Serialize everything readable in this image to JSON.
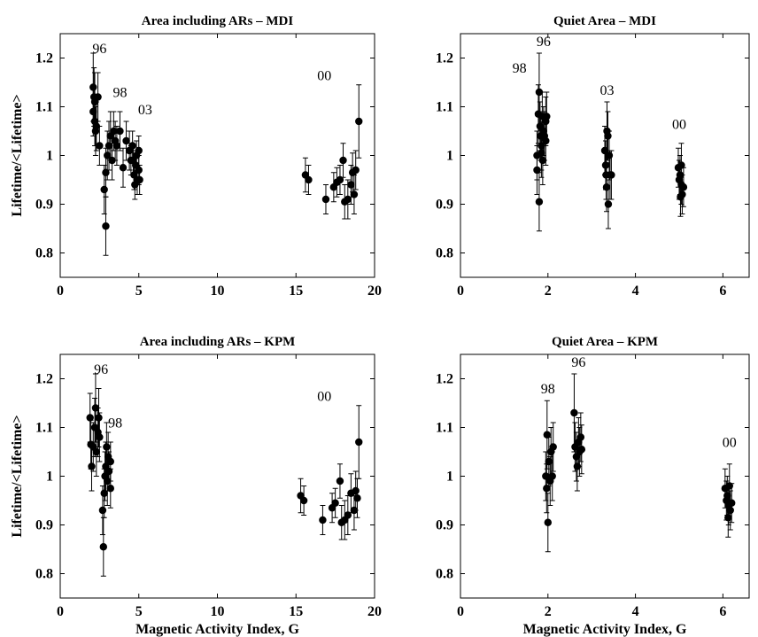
{
  "chart_data": [
    {
      "type": "scatter",
      "title": "Area including ARs – MDI",
      "xlabel": "",
      "ylabel": "Lifetime/<Lifetime>",
      "xlim": [
        0,
        20
      ],
      "ylim": [
        0.75,
        1.25
      ],
      "xticks": [
        0,
        5,
        10,
        15,
        20
      ],
      "yticks": [
        0.8,
        0.9,
        1,
        1.1,
        1.2
      ],
      "annotations": [
        {
          "text": "96",
          "x": 2.5,
          "y": 1.21
        },
        {
          "text": "98",
          "x": 3.8,
          "y": 1.12
        },
        {
          "text": "03",
          "x": 5.4,
          "y": 1.085
        },
        {
          "text": "00",
          "x": 16.8,
          "y": 1.155
        }
      ],
      "points": [
        {
          "x": 2.1,
          "y": 1.14,
          "err": 0.07
        },
        {
          "x": 2.15,
          "y": 1.12,
          "err": 0.06
        },
        {
          "x": 2.2,
          "y": 1.11,
          "err": 0.06
        },
        {
          "x": 2.1,
          "y": 1.09,
          "err": 0.05
        },
        {
          "x": 2.2,
          "y": 1.07,
          "err": 0.05
        },
        {
          "x": 2.3,
          "y": 1.06,
          "err": 0.05
        },
        {
          "x": 2.25,
          "y": 1.05,
          "err": 0.05
        },
        {
          "x": 2.4,
          "y": 1.12,
          "err": 0.05
        },
        {
          "x": 2.5,
          "y": 1.02,
          "err": 0.04
        },
        {
          "x": 2.8,
          "y": 0.93,
          "err": 0.05
        },
        {
          "x": 2.9,
          "y": 0.855,
          "err": 0.06
        },
        {
          "x": 2.9,
          "y": 0.965,
          "err": 0.05
        },
        {
          "x": 3.0,
          "y": 1.0,
          "err": 0.05
        },
        {
          "x": 3.1,
          "y": 1.02,
          "err": 0.05
        },
        {
          "x": 3.2,
          "y": 1.04,
          "err": 0.05
        },
        {
          "x": 3.3,
          "y": 0.99,
          "err": 0.04
        },
        {
          "x": 3.4,
          "y": 1.05,
          "err": 0.04
        },
        {
          "x": 3.5,
          "y": 1.03,
          "err": 0.04
        },
        {
          "x": 3.6,
          "y": 1.02,
          "err": 0.04
        },
        {
          "x": 3.8,
          "y": 1.05,
          "err": 0.04
        },
        {
          "x": 4.0,
          "y": 0.975,
          "err": 0.04
        },
        {
          "x": 4.2,
          "y": 1.03,
          "err": 0.04
        },
        {
          "x": 4.4,
          "y": 1.01,
          "err": 0.04
        },
        {
          "x": 4.5,
          "y": 0.99,
          "err": 0.03
        },
        {
          "x": 4.6,
          "y": 1.02,
          "err": 0.03
        },
        {
          "x": 4.7,
          "y": 0.96,
          "err": 0.03
        },
        {
          "x": 4.75,
          "y": 0.94,
          "err": 0.03
        },
        {
          "x": 4.8,
          "y": 0.98,
          "err": 0.03
        },
        {
          "x": 4.85,
          "y": 1.0,
          "err": 0.03
        },
        {
          "x": 4.9,
          "y": 0.95,
          "err": 0.03
        },
        {
          "x": 5.0,
          "y": 0.97,
          "err": 0.03
        },
        {
          "x": 5.0,
          "y": 1.01,
          "err": 0.03
        },
        {
          "x": 5.05,
          "y": 0.95,
          "err": 0.03
        },
        {
          "x": 4.65,
          "y": 0.99,
          "err": 0.03
        },
        {
          "x": 15.6,
          "y": 0.96,
          "err": 0.035
        },
        {
          "x": 15.8,
          "y": 0.95,
          "err": 0.03
        },
        {
          "x": 16.9,
          "y": 0.91,
          "err": 0.03
        },
        {
          "x": 17.4,
          "y": 0.935,
          "err": 0.03
        },
        {
          "x": 17.6,
          "y": 0.945,
          "err": 0.03
        },
        {
          "x": 17.8,
          "y": 0.95,
          "err": 0.03
        },
        {
          "x": 18.0,
          "y": 0.99,
          "err": 0.035
        },
        {
          "x": 18.1,
          "y": 0.905,
          "err": 0.035
        },
        {
          "x": 18.3,
          "y": 0.91,
          "err": 0.04
        },
        {
          "x": 18.5,
          "y": 0.94,
          "err": 0.04
        },
        {
          "x": 18.6,
          "y": 0.965,
          "err": 0.04
        },
        {
          "x": 18.7,
          "y": 0.92,
          "err": 0.04
        },
        {
          "x": 18.8,
          "y": 0.97,
          "err": 0.04
        },
        {
          "x": 19.0,
          "y": 1.07,
          "err": 0.075
        }
      ]
    },
    {
      "type": "scatter",
      "title": "Quiet Area – MDI",
      "xlabel": "",
      "ylabel": "",
      "xlim": [
        0,
        6.6
      ],
      "ylim": [
        0.75,
        1.25
      ],
      "xticks": [
        0,
        2,
        4,
        6
      ],
      "yticks": [
        0.8,
        0.9,
        1,
        1.1,
        1.2
      ],
      "annotations": [
        {
          "text": "96",
          "x": 1.9,
          "y": 1.225
        },
        {
          "text": "98",
          "x": 1.35,
          "y": 1.17
        },
        {
          "text": "03",
          "x": 3.35,
          "y": 1.125
        },
        {
          "text": "00",
          "x": 5.0,
          "y": 1.055
        }
      ],
      "points": [
        {
          "x": 1.75,
          "y": 1.0,
          "err": 0.05
        },
        {
          "x": 1.75,
          "y": 0.97,
          "err": 0.05
        },
        {
          "x": 1.78,
          "y": 1.085,
          "err": 0.06
        },
        {
          "x": 1.8,
          "y": 1.13,
          "err": 0.08
        },
        {
          "x": 1.8,
          "y": 0.905,
          "err": 0.06
        },
        {
          "x": 1.82,
          "y": 1.06,
          "err": 0.05
        },
        {
          "x": 1.83,
          "y": 1.04,
          "err": 0.05
        },
        {
          "x": 1.85,
          "y": 1.02,
          "err": 0.05
        },
        {
          "x": 1.87,
          "y": 1.08,
          "err": 0.05
        },
        {
          "x": 1.88,
          "y": 0.99,
          "err": 0.05
        },
        {
          "x": 1.9,
          "y": 1.05,
          "err": 0.05
        },
        {
          "x": 1.92,
          "y": 1.04,
          "err": 0.05
        },
        {
          "x": 1.95,
          "y": 1.07,
          "err": 0.05
        },
        {
          "x": 1.95,
          "y": 1.03,
          "err": 0.05
        },
        {
          "x": 1.97,
          "y": 1.08,
          "err": 0.05
        },
        {
          "x": 1.85,
          "y": 1.005,
          "err": 0.05
        },
        {
          "x": 3.3,
          "y": 1.01,
          "err": 0.05
        },
        {
          "x": 3.32,
          "y": 0.98,
          "err": 0.05
        },
        {
          "x": 3.33,
          "y": 0.96,
          "err": 0.05
        },
        {
          "x": 3.34,
          "y": 0.935,
          "err": 0.05
        },
        {
          "x": 3.35,
          "y": 1.05,
          "err": 0.06
        },
        {
          "x": 3.37,
          "y": 1.04,
          "err": 0.05
        },
        {
          "x": 3.38,
          "y": 0.9,
          "err": 0.05
        },
        {
          "x": 3.4,
          "y": 1.0,
          "err": 0.05
        },
        {
          "x": 3.42,
          "y": 0.96,
          "err": 0.05
        },
        {
          "x": 3.45,
          "y": 0.96,
          "err": 0.05
        },
        {
          "x": 4.98,
          "y": 0.975,
          "err": 0.04
        },
        {
          "x": 5.0,
          "y": 0.95,
          "err": 0.04
        },
        {
          "x": 5.02,
          "y": 0.96,
          "err": 0.04
        },
        {
          "x": 5.03,
          "y": 0.915,
          "err": 0.04
        },
        {
          "x": 5.05,
          "y": 0.98,
          "err": 0.045
        },
        {
          "x": 5.07,
          "y": 0.92,
          "err": 0.04
        },
        {
          "x": 5.1,
          "y": 0.935,
          "err": 0.04
        },
        {
          "x": 5.05,
          "y": 0.94,
          "err": 0.04
        }
      ]
    },
    {
      "type": "scatter",
      "title": "Area including ARs – KPM",
      "xlabel": "Magnetic Activity Index, G",
      "ylabel": "Lifetime/<Lifetime>",
      "xlim": [
        0,
        20
      ],
      "ylim": [
        0.75,
        1.25
      ],
      "xticks": [
        0,
        5,
        10,
        15,
        20
      ],
      "yticks": [
        0.8,
        0.9,
        1,
        1.1,
        1.2
      ],
      "annotations": [
        {
          "text": "96",
          "x": 2.6,
          "y": 1.21
        },
        {
          "text": "98",
          "x": 3.5,
          "y": 1.1
        },
        {
          "text": "00",
          "x": 16.8,
          "y": 1.155
        }
      ],
      "points": [
        {
          "x": 1.9,
          "y": 1.12,
          "err": 0.05
        },
        {
          "x": 1.95,
          "y": 1.065,
          "err": 0.05
        },
        {
          "x": 2.0,
          "y": 1.02,
          "err": 0.05
        },
        {
          "x": 2.1,
          "y": 1.06,
          "err": 0.05
        },
        {
          "x": 2.2,
          "y": 1.1,
          "err": 0.06
        },
        {
          "x": 2.25,
          "y": 1.14,
          "err": 0.07
        },
        {
          "x": 2.3,
          "y": 1.05,
          "err": 0.05
        },
        {
          "x": 2.4,
          "y": 1.09,
          "err": 0.05
        },
        {
          "x": 2.45,
          "y": 1.12,
          "err": 0.06
        },
        {
          "x": 2.5,
          "y": 1.08,
          "err": 0.05
        },
        {
          "x": 2.7,
          "y": 0.93,
          "err": 0.05
        },
        {
          "x": 2.75,
          "y": 0.855,
          "err": 0.06
        },
        {
          "x": 2.8,
          "y": 0.965,
          "err": 0.05
        },
        {
          "x": 2.85,
          "y": 1.0,
          "err": 0.05
        },
        {
          "x": 2.9,
          "y": 1.02,
          "err": 0.05
        },
        {
          "x": 3.0,
          "y": 0.99,
          "err": 0.05
        },
        {
          "x": 3.05,
          "y": 1.04,
          "err": 0.05
        },
        {
          "x": 3.1,
          "y": 1.01,
          "err": 0.04
        },
        {
          "x": 3.2,
          "y": 0.975,
          "err": 0.04
        },
        {
          "x": 3.2,
          "y": 1.03,
          "err": 0.04
        },
        {
          "x": 2.95,
          "y": 1.06,
          "err": 0.05
        },
        {
          "x": 15.3,
          "y": 0.96,
          "err": 0.035
        },
        {
          "x": 15.5,
          "y": 0.95,
          "err": 0.03
        },
        {
          "x": 16.7,
          "y": 0.91,
          "err": 0.03
        },
        {
          "x": 17.3,
          "y": 0.935,
          "err": 0.03
        },
        {
          "x": 17.5,
          "y": 0.945,
          "err": 0.03
        },
        {
          "x": 17.8,
          "y": 0.99,
          "err": 0.035
        },
        {
          "x": 17.9,
          "y": 0.905,
          "err": 0.035
        },
        {
          "x": 18.1,
          "y": 0.91,
          "err": 0.04
        },
        {
          "x": 18.3,
          "y": 0.92,
          "err": 0.04
        },
        {
          "x": 18.5,
          "y": 0.965,
          "err": 0.04
        },
        {
          "x": 18.7,
          "y": 0.93,
          "err": 0.04
        },
        {
          "x": 18.8,
          "y": 0.97,
          "err": 0.04
        },
        {
          "x": 19.0,
          "y": 1.07,
          "err": 0.075
        },
        {
          "x": 18.9,
          "y": 0.955,
          "err": 0.04
        }
      ]
    },
    {
      "type": "scatter",
      "title": "Quiet Area – KPM",
      "xlabel": "Magnetic Activity Index, G",
      "ylabel": "",
      "xlim": [
        0,
        6.6
      ],
      "ylim": [
        0.75,
        1.25
      ],
      "xticks": [
        0,
        2,
        4,
        6
      ],
      "yticks": [
        0.8,
        0.9,
        1,
        1.1,
        1.2
      ],
      "annotations": [
        {
          "text": "96",
          "x": 2.7,
          "y": 1.225
        },
        {
          "text": "98",
          "x": 2.0,
          "y": 1.17
        },
        {
          "text": "00",
          "x": 6.15,
          "y": 1.06
        }
      ],
      "points": [
        {
          "x": 1.95,
          "y": 1.0,
          "err": 0.05
        },
        {
          "x": 1.97,
          "y": 0.975,
          "err": 0.05
        },
        {
          "x": 1.98,
          "y": 1.085,
          "err": 0.07
        },
        {
          "x": 2.0,
          "y": 0.905,
          "err": 0.06
        },
        {
          "x": 2.02,
          "y": 1.03,
          "err": 0.05
        },
        {
          "x": 2.05,
          "y": 0.99,
          "err": 0.05
        },
        {
          "x": 2.07,
          "y": 1.05,
          "err": 0.05
        },
        {
          "x": 2.1,
          "y": 1.0,
          "err": 0.05
        },
        {
          "x": 2.12,
          "y": 1.06,
          "err": 0.05
        },
        {
          "x": 2.6,
          "y": 1.13,
          "err": 0.08
        },
        {
          "x": 2.62,
          "y": 1.06,
          "err": 0.05
        },
        {
          "x": 2.65,
          "y": 1.04,
          "err": 0.05
        },
        {
          "x": 2.67,
          "y": 1.02,
          "err": 0.05
        },
        {
          "x": 2.7,
          "y": 1.07,
          "err": 0.05
        },
        {
          "x": 2.72,
          "y": 1.05,
          "err": 0.05
        },
        {
          "x": 2.75,
          "y": 1.08,
          "err": 0.05
        },
        {
          "x": 2.77,
          "y": 1.055,
          "err": 0.05
        },
        {
          "x": 6.05,
          "y": 0.975,
          "err": 0.04
        },
        {
          "x": 6.08,
          "y": 0.95,
          "err": 0.04
        },
        {
          "x": 6.1,
          "y": 0.96,
          "err": 0.04
        },
        {
          "x": 6.12,
          "y": 0.915,
          "err": 0.04
        },
        {
          "x": 6.15,
          "y": 0.98,
          "err": 0.045
        },
        {
          "x": 6.17,
          "y": 0.93,
          "err": 0.04
        },
        {
          "x": 6.2,
          "y": 0.945,
          "err": 0.04
        },
        {
          "x": 6.13,
          "y": 0.94,
          "err": 0.04
        }
      ]
    }
  ]
}
